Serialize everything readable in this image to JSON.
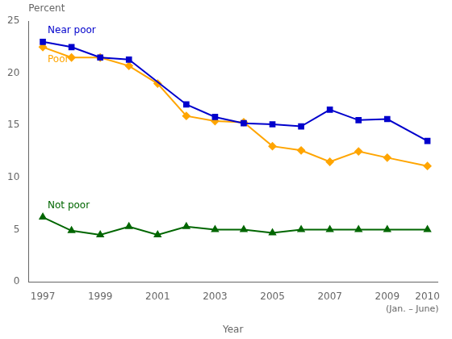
{
  "chart_data": {
    "type": "line",
    "xlabel": "Year",
    "ylabel": "Percent",
    "xlim": [
      1996.5,
      2010.75
    ],
    "ylim": [
      0,
      25
    ],
    "xticks": [
      1997,
      1999,
      2001,
      2003,
      2005,
      2007,
      2009,
      {
        "value": 2010.4,
        "label": "2010"
      }
    ],
    "yticks": [
      0,
      5,
      10,
      15,
      20,
      25
    ],
    "grid": false,
    "annotations": [
      {
        "text": "(Jan. – June)",
        "x": 2010.4
      }
    ],
    "series": [
      {
        "name": "Near poor",
        "color": "#0000cc",
        "marker": "square",
        "x": [
          1997,
          1998,
          1999,
          2000,
          2002,
          2003,
          2004,
          2005,
          2006,
          2007,
          2008,
          2009,
          2010.4
        ],
        "values": [
          23.0,
          22.5,
          21.5,
          21.3,
          17.0,
          15.8,
          15.2,
          15.1,
          14.9,
          16.5,
          15.5,
          15.6,
          13.5
        ]
      },
      {
        "name": "Poor",
        "color": "#ffa500",
        "marker": "diamond",
        "x": [
          1997,
          1998,
          1999,
          2000,
          2001,
          2002,
          2003,
          2004,
          2005,
          2006,
          2007,
          2008,
          2009,
          2010.4
        ],
        "values": [
          22.5,
          21.5,
          21.5,
          20.7,
          19.0,
          15.9,
          15.4,
          15.3,
          13.0,
          12.6,
          11.5,
          12.5,
          11.9,
          11.1
        ]
      },
      {
        "name": "Not poor",
        "color": "#006600",
        "marker": "triangle",
        "x": [
          1997,
          1998,
          1999,
          2000,
          2001,
          2002,
          2003,
          2004,
          2005,
          2006,
          2007,
          2008,
          2009,
          2010.4
        ],
        "values": [
          6.2,
          4.9,
          4.5,
          5.3,
          4.5,
          5.3,
          5.0,
          5.0,
          4.7,
          5.0,
          5.0,
          5.0,
          5.0,
          5.0
        ]
      }
    ]
  }
}
